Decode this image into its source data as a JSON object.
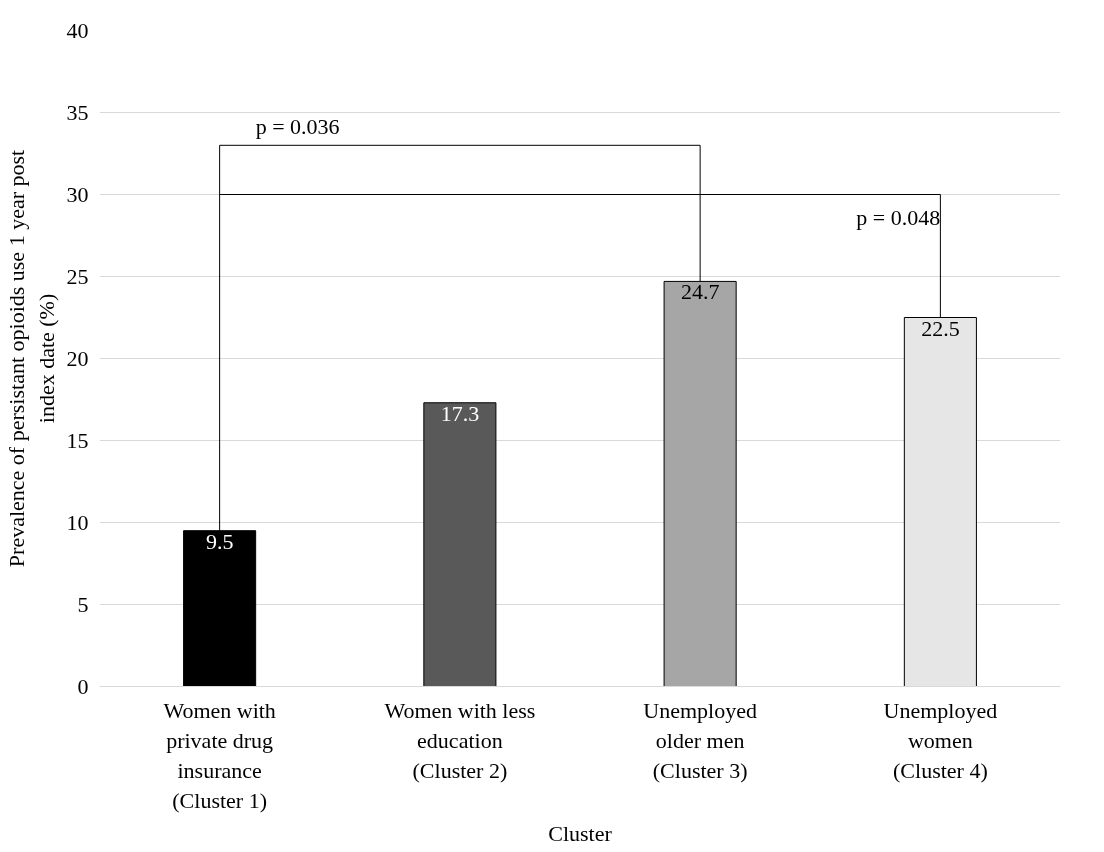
{
  "chart_data": {
    "type": "bar",
    "xlabel": "Cluster",
    "ylabel": "Prevalence of persistant opioids use 1 year post\nindex date (%)",
    "categories": [
      "Women with\nprivate drug\ninsurance\n(Cluster 1)",
      "Women with less\neducation\n(Cluster 2)",
      "Unemployed\nolder men\n(Cluster 3)",
      "Unemployed\nwomen\n(Cluster 4)"
    ],
    "values": [
      9.5,
      17.3,
      24.7,
      22.5
    ],
    "colors": [
      "#000000",
      "#595959",
      "#a6a6a6",
      "#e7e6e6"
    ],
    "ylim": [
      0,
      40
    ],
    "yticks": [
      0,
      5,
      10,
      15,
      20,
      25,
      30,
      35,
      40
    ],
    "grid": "y",
    "data_labels": true,
    "annotations": [
      "p = 0.036",
      "p = 0.048"
    ]
  }
}
